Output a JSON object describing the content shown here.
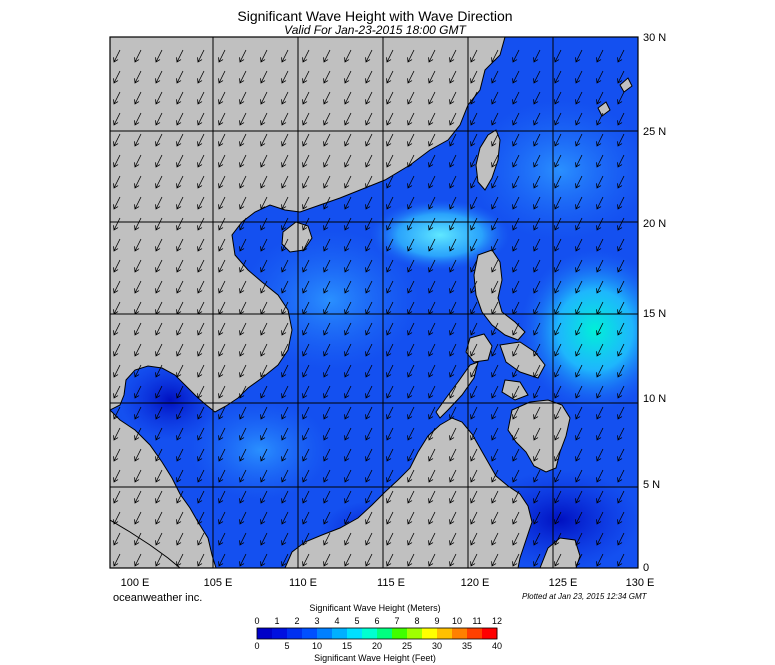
{
  "title": "Significant Wave Height with Wave Direction",
  "subtitle": "Valid For Jan-23-2015 18:00 GMT",
  "axes": {
    "longitude_labels": [
      "100 E",
      "105 E",
      "110 E",
      "115 E",
      "120 E",
      "125 E",
      "130 E"
    ],
    "latitude_labels": [
      "30 N",
      "25 N",
      "20 N",
      "15 N",
      "10 N",
      "5 N",
      "0"
    ]
  },
  "credit": "oceanweather inc.",
  "plotted_at": "Plotted at Jan 23, 2015 12:34 GMT",
  "colorbar": {
    "title_meters": "Significant Wave Height (Meters)",
    "title_feet": "Significant Wave Height (Feet)",
    "meter_ticks": [
      "0",
      "1",
      "2",
      "3",
      "4",
      "5",
      "6",
      "7",
      "8",
      "9",
      "10",
      "11",
      "12"
    ],
    "feet_ticks": [
      "0",
      "5",
      "10",
      "15",
      "20",
      "25",
      "30",
      "35",
      "40"
    ],
    "colors": [
      "#0000c8",
      "#0010e0",
      "#0030f0",
      "#0050ff",
      "#0080ff",
      "#00b0ff",
      "#00e0ff",
      "#00ffd0",
      "#00ff80",
      "#40ff00",
      "#a0ff00",
      "#ffff00",
      "#ffc000",
      "#ff8000",
      "#ff4000",
      "#ff0000"
    ]
  },
  "legend_colors": {
    "land": "#c0c0c0",
    "calm_sea": "#0a2adc",
    "moderate_sea": "#1e6cf8",
    "high_sea": "#28c8ff",
    "gulf_deep": "#000080"
  }
}
